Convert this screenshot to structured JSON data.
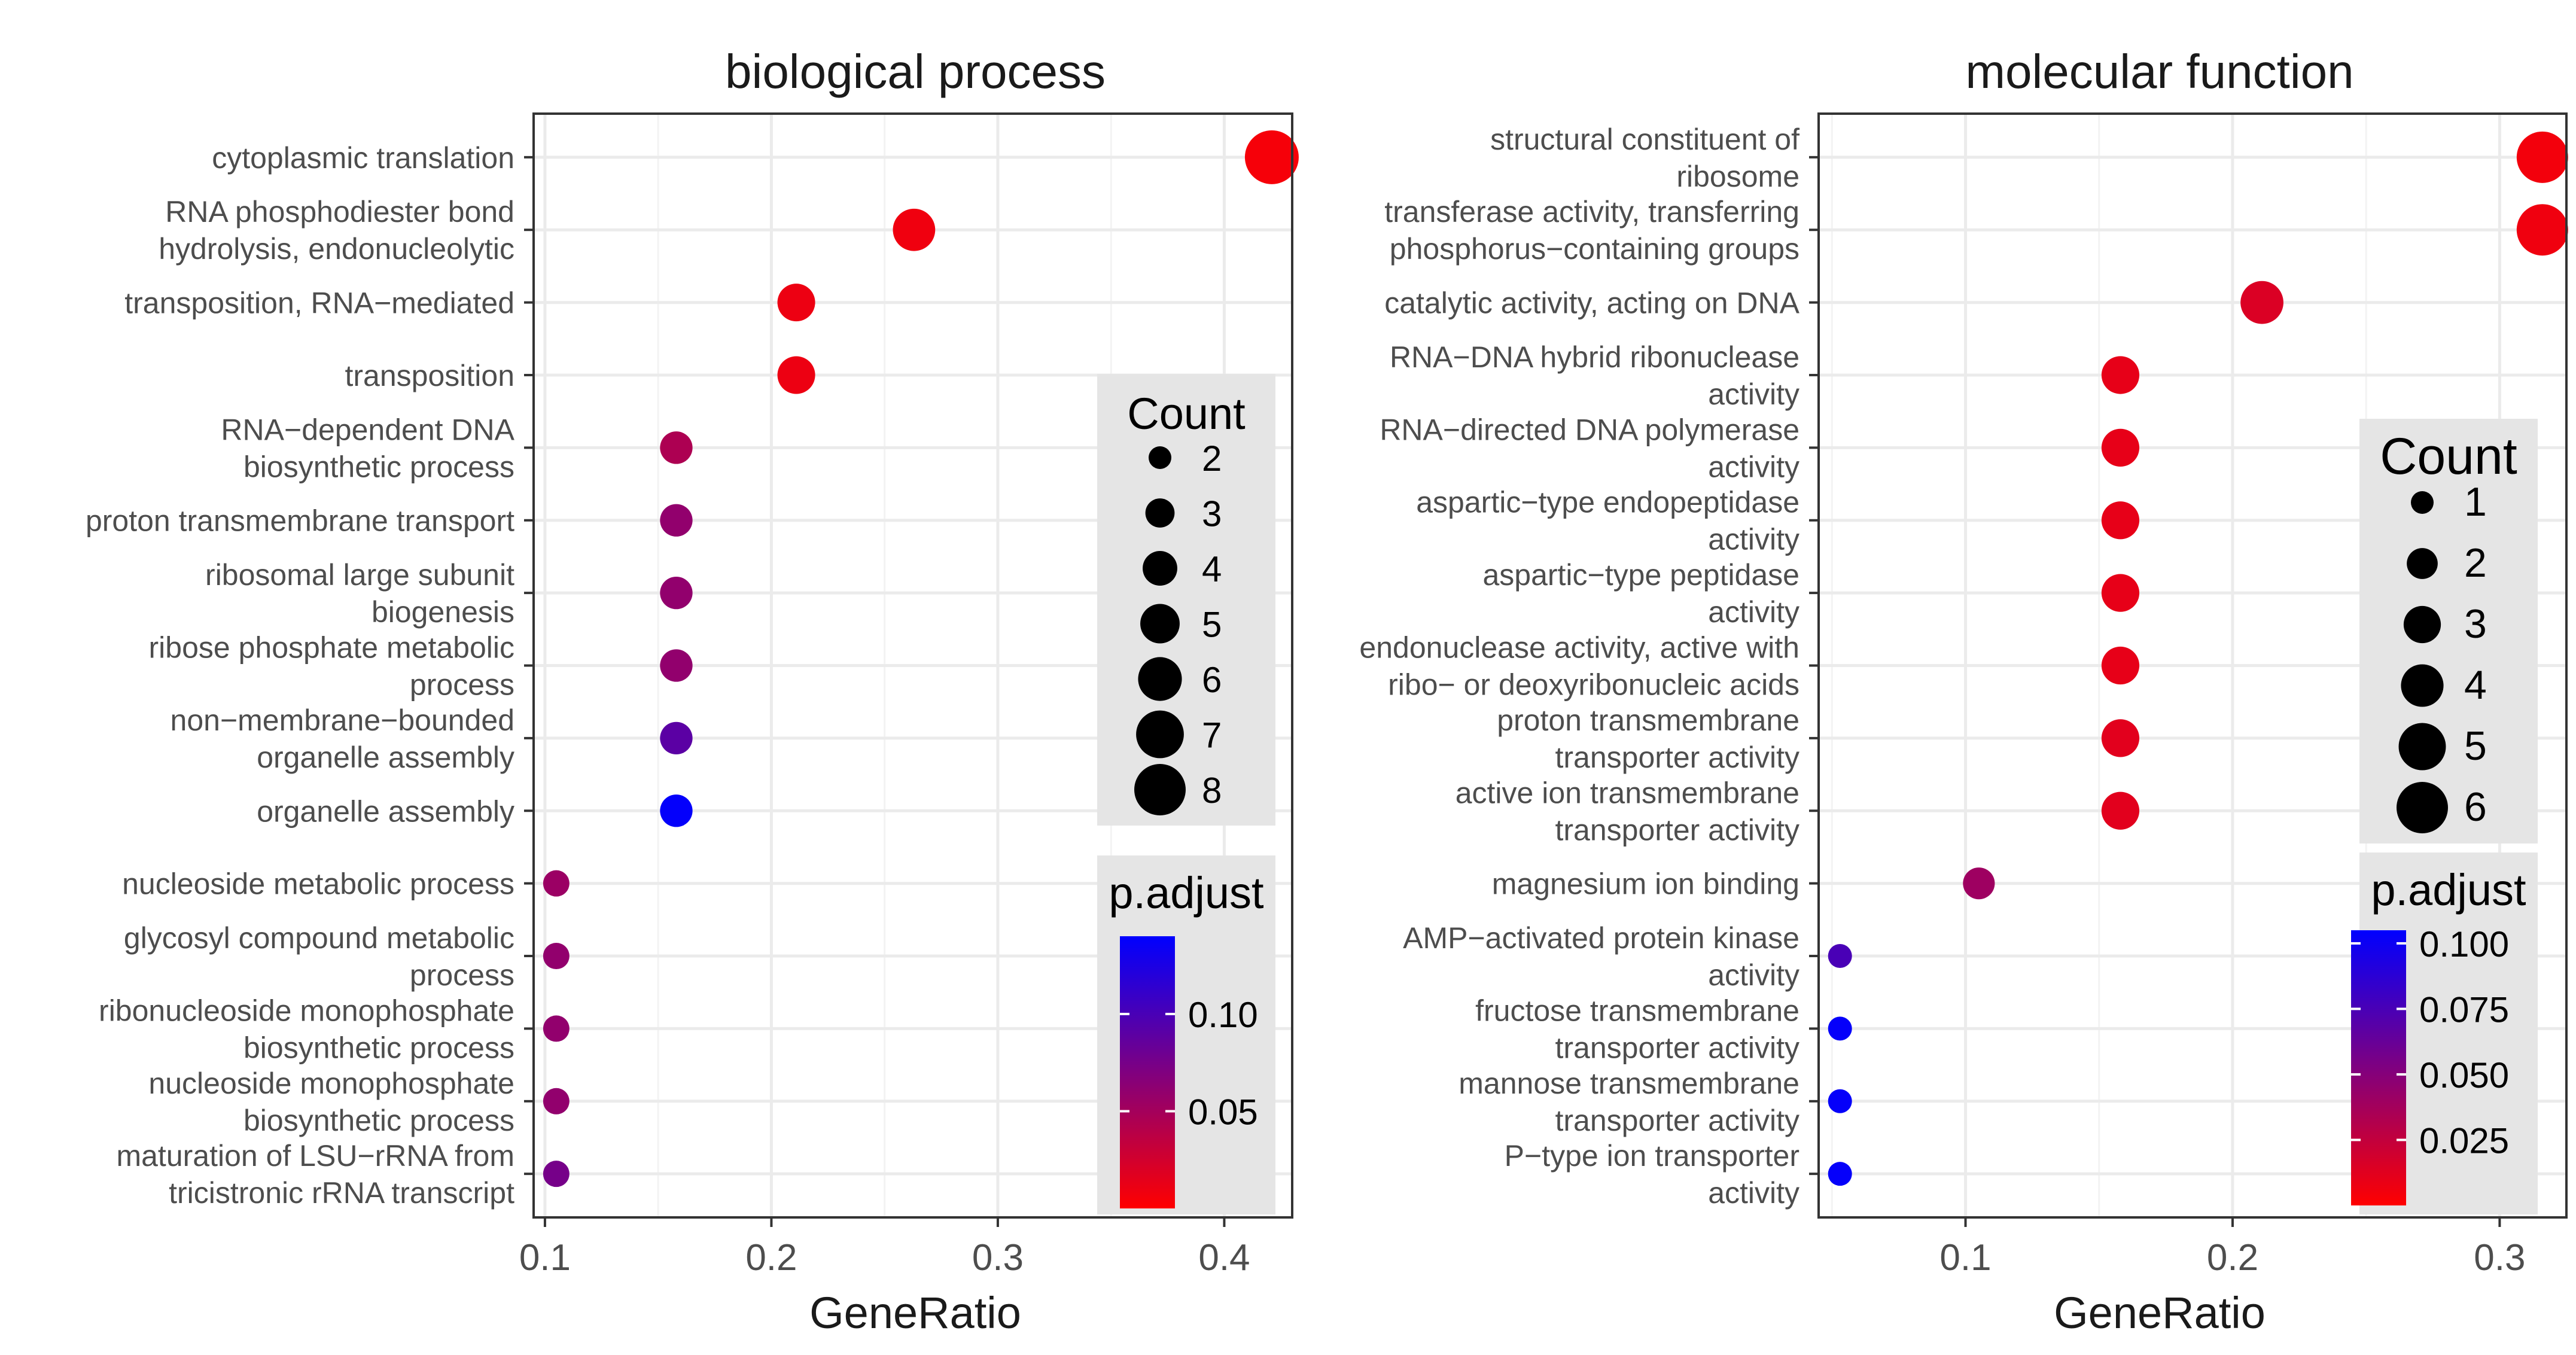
{
  "chart_data": [
    {
      "type": "scatter",
      "title": "biological process",
      "xlabel": "GeneRatio",
      "xlim": [
        0.095,
        0.43
      ],
      "xticks": [
        0.1,
        0.2,
        0.3,
        0.4
      ],
      "xtick_labels": [
        "0.1",
        "0.2",
        "0.3",
        "0.4"
      ],
      "size_legend": {
        "title": "Count",
        "values": [
          2,
          3,
          4,
          5,
          6,
          7,
          8
        ],
        "labels": [
          "2",
          "3",
          "4",
          "5",
          "6",
          "7",
          "8"
        ]
      },
      "color_legend": {
        "title": "p.adjust",
        "min": 0.0,
        "max": 0.14,
        "ticks": [
          0.1,
          0.05
        ],
        "tick_labels": [
          "0.10",
          "0.05"
        ]
      },
      "terms": [
        {
          "label": "cytoplasmic translation",
          "gene_ratio": 0.421,
          "count": 8,
          "p_adjust": 0.005
        },
        {
          "label": "RNA phosphodiester bond\nhydrolysis, endonucleolytic",
          "gene_ratio": 0.263,
          "count": 5,
          "p_adjust": 0.008
        },
        {
          "label": "transposition, RNA−mediated",
          "gene_ratio": 0.211,
          "count": 4,
          "p_adjust": 0.01
        },
        {
          "label": "transposition",
          "gene_ratio": 0.211,
          "count": 4,
          "p_adjust": 0.01
        },
        {
          "label": "RNA−dependent DNA\nbiosynthetic process",
          "gene_ratio": 0.158,
          "count": 3,
          "p_adjust": 0.045
        },
        {
          "label": "proton transmembrane transport",
          "gene_ratio": 0.158,
          "count": 3,
          "p_adjust": 0.06
        },
        {
          "label": "ribosomal large subunit\nbiogenesis",
          "gene_ratio": 0.158,
          "count": 3,
          "p_adjust": 0.06
        },
        {
          "label": "ribose phosphate metabolic\nprocess",
          "gene_ratio": 0.158,
          "count": 3,
          "p_adjust": 0.06
        },
        {
          "label": "non−membrane−bounded\norganelle assembly",
          "gene_ratio": 0.158,
          "count": 3,
          "p_adjust": 0.09
        },
        {
          "label": "organelle assembly",
          "gene_ratio": 0.158,
          "count": 3,
          "p_adjust": 0.138
        },
        {
          "label": "nucleoside metabolic process",
          "gene_ratio": 0.105,
          "count": 2,
          "p_adjust": 0.055
        },
        {
          "label": "glycosyl compound metabolic\nprocess",
          "gene_ratio": 0.105,
          "count": 2,
          "p_adjust": 0.06
        },
        {
          "label": "ribonucleoside monophosphate\nbiosynthetic process",
          "gene_ratio": 0.105,
          "count": 2,
          "p_adjust": 0.06
        },
        {
          "label": "nucleoside monophosphate\nbiosynthetic process",
          "gene_ratio": 0.105,
          "count": 2,
          "p_adjust": 0.06
        },
        {
          "label": "maturation of LSU−rRNA from\ntricistronic rRNA transcript",
          "gene_ratio": 0.105,
          "count": 2,
          "p_adjust": 0.075
        }
      ]
    },
    {
      "type": "scatter",
      "title": "molecular function",
      "xlabel": "GeneRatio",
      "xlim": [
        0.045,
        0.325
      ],
      "xticks": [
        0.1,
        0.2,
        0.3
      ],
      "xtick_labels": [
        "0.1",
        "0.2",
        "0.3"
      ],
      "size_legend": {
        "title": "Count",
        "values": [
          1,
          2,
          3,
          4,
          5,
          6
        ],
        "labels": [
          "1",
          "2",
          "3",
          "4",
          "5",
          "6"
        ]
      },
      "color_legend": {
        "title": "p.adjust",
        "min": 0.0,
        "max": 0.105,
        "ticks": [
          0.1,
          0.075,
          0.05,
          0.025
        ],
        "tick_labels": [
          "0.100",
          "0.075",
          "0.050",
          "0.025"
        ]
      },
      "terms": [
        {
          "label": "structural constituent of\nribosome",
          "gene_ratio": 0.316,
          "count": 6,
          "p_adjust": 0.005
        },
        {
          "label": "transferase activity, transferring\nphosphorus−containing groups",
          "gene_ratio": 0.316,
          "count": 6,
          "p_adjust": 0.006
        },
        {
          "label": "catalytic activity, acting on DNA",
          "gene_ratio": 0.211,
          "count": 4,
          "p_adjust": 0.015
        },
        {
          "label": "RNA−DNA hybrid ribonuclease\nactivity",
          "gene_ratio": 0.158,
          "count": 3,
          "p_adjust": 0.01
        },
        {
          "label": "RNA−directed DNA polymerase\nactivity",
          "gene_ratio": 0.158,
          "count": 3,
          "p_adjust": 0.01
        },
        {
          "label": "aspartic−type endopeptidase\nactivity",
          "gene_ratio": 0.158,
          "count": 3,
          "p_adjust": 0.01
        },
        {
          "label": "aspartic−type peptidase\nactivity",
          "gene_ratio": 0.158,
          "count": 3,
          "p_adjust": 0.01
        },
        {
          "label": "endonuclease activity, active with\nribo− or deoxyribonucleic acids",
          "gene_ratio": 0.158,
          "count": 3,
          "p_adjust": 0.01
        },
        {
          "label": "proton transmembrane\ntransporter activity",
          "gene_ratio": 0.158,
          "count": 3,
          "p_adjust": 0.012
        },
        {
          "label": "active ion transmembrane\ntransporter activity",
          "gene_ratio": 0.158,
          "count": 3,
          "p_adjust": 0.012
        },
        {
          "label": "magnesium ion binding",
          "gene_ratio": 0.105,
          "count": 2,
          "p_adjust": 0.04
        },
        {
          "label": "AMP−activated protein kinase\nactivity",
          "gene_ratio": 0.053,
          "count": 1,
          "p_adjust": 0.075
        },
        {
          "label": "fructose transmembrane\ntransporter activity",
          "gene_ratio": 0.053,
          "count": 1,
          "p_adjust": 0.103
        },
        {
          "label": "mannose transmembrane\ntransporter activity",
          "gene_ratio": 0.053,
          "count": 1,
          "p_adjust": 0.103
        },
        {
          "label": "P−type ion transporter\nactivity",
          "gene_ratio": 0.053,
          "count": 1,
          "p_adjust": 0.103
        }
      ]
    }
  ]
}
